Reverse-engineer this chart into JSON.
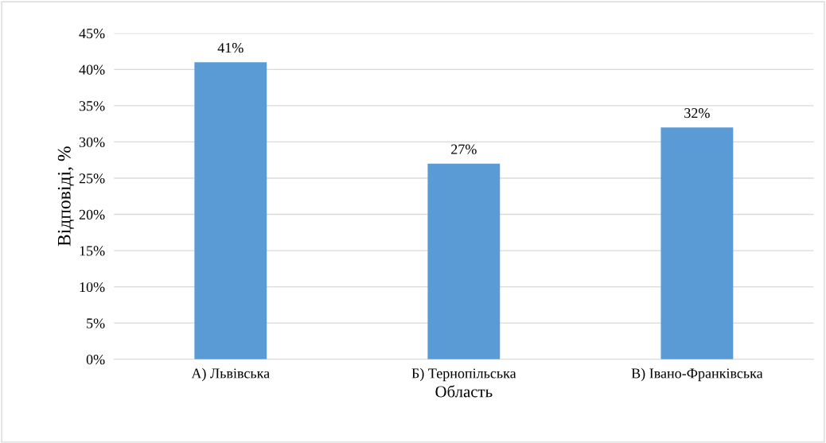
{
  "chart_data": {
    "type": "bar",
    "xlabel": "Область",
    "ylabel": "Відповіді, %",
    "categories": [
      "А) Львівська",
      "Б) Тернопільська",
      "В) Івано-Франківська"
    ],
    "values": [
      41,
      27,
      32
    ],
    "value_labels": [
      "41%",
      "27%",
      "32%"
    ],
    "color": "#5b9bd5",
    "ylim": [
      0,
      45
    ],
    "yticks": [
      {
        "value": 0,
        "label": "0%"
      },
      {
        "value": 5,
        "label": "5%"
      },
      {
        "value": 10,
        "label": "10%"
      },
      {
        "value": 15,
        "label": "15%"
      },
      {
        "value": 20,
        "label": "20%"
      },
      {
        "value": 25,
        "label": "25%"
      },
      {
        "value": 30,
        "label": "30%"
      },
      {
        "value": 35,
        "label": "35%"
      },
      {
        "value": 40,
        "label": "40%"
      },
      {
        "value": 45,
        "label": "45%"
      }
    ],
    "grid": "y"
  }
}
